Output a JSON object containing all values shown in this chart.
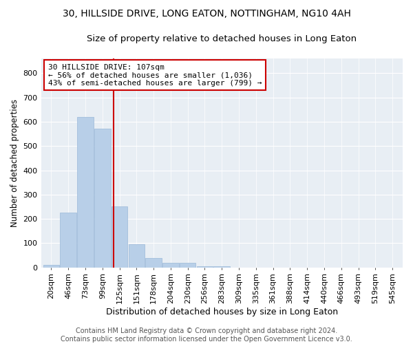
{
  "title1": "30, HILLSIDE DRIVE, LONG EATON, NOTTINGHAM, NG10 4AH",
  "title2": "Size of property relative to detached houses in Long Eaton",
  "xlabel": "Distribution of detached houses by size in Long Eaton",
  "ylabel": "Number of detached properties",
  "categories": [
    "20sqm",
    "46sqm",
    "73sqm",
    "99sqm",
    "125sqm",
    "151sqm",
    "178sqm",
    "204sqm",
    "230sqm",
    "256sqm",
    "283sqm",
    "309sqm",
    "335sqm",
    "361sqm",
    "388sqm",
    "414sqm",
    "440sqm",
    "466sqm",
    "493sqm",
    "519sqm",
    "545sqm"
  ],
  "values": [
    10,
    225,
    620,
    570,
    250,
    95,
    40,
    20,
    20,
    5,
    5,
    0,
    0,
    0,
    0,
    0,
    0,
    0,
    0,
    0,
    0
  ],
  "bar_color": "#b8cfe8",
  "bar_edgecolor": "#9ab8d8",
  "vline_x": 3.65,
  "vline_color": "#cc0000",
  "annotation_text": "30 HILLSIDE DRIVE: 107sqm\n← 56% of detached houses are smaller (1,036)\n43% of semi-detached houses are larger (799) →",
  "annotation_box_color": "white",
  "annotation_box_edgecolor": "#cc0000",
  "ylim": [
    0,
    860
  ],
  "yticks": [
    0,
    100,
    200,
    300,
    400,
    500,
    600,
    700,
    800
  ],
  "plot_background": "#e8eef4",
  "footer1": "Contains HM Land Registry data © Crown copyright and database right 2024.",
  "footer2": "Contains public sector information licensed under the Open Government Licence v3.0.",
  "title1_fontsize": 10,
  "title2_fontsize": 9.5,
  "xlabel_fontsize": 9,
  "ylabel_fontsize": 8.5,
  "tick_fontsize": 8,
  "annotation_fontsize": 8,
  "footer_fontsize": 7
}
